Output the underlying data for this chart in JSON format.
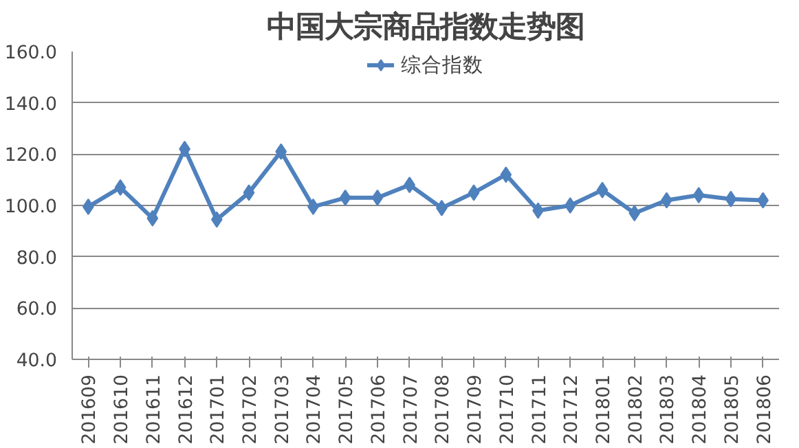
{
  "chart_data": {
    "type": "line",
    "title": "中国大宗商品指数走势图",
    "categories": [
      "201609",
      "201610",
      "201611",
      "201612",
      "201701",
      "201702",
      "201703",
      "201704",
      "201705",
      "201706",
      "201707",
      "201708",
      "201709",
      "201710",
      "201711",
      "201712",
      "201801",
      "201802",
      "201803",
      "201804",
      "201805",
      "201806"
    ],
    "series": [
      {
        "name": "综合指数",
        "color": "#4f81bd",
        "values": [
          99.5,
          107,
          95,
          122,
          94.5,
          105,
          121,
          99.5,
          103,
          103,
          108,
          99,
          105,
          112,
          98,
          100,
          106,
          97,
          102,
          104,
          102.5,
          102
        ]
      }
    ],
    "ylim": [
      40,
      160
    ],
    "yticks": [
      {
        "value": 40,
        "label": "40.0"
      },
      {
        "value": 60,
        "label": "60.0"
      },
      {
        "value": 80,
        "label": "80.0"
      },
      {
        "value": 100,
        "label": "100.0"
      },
      {
        "value": 120,
        "label": "120.0"
      },
      {
        "value": 140,
        "label": "140.0"
      },
      {
        "value": 160,
        "label": "160.0"
      }
    ],
    "grid": "y",
    "legend": "top",
    "marker": "diamond",
    "line_style": "solid"
  }
}
